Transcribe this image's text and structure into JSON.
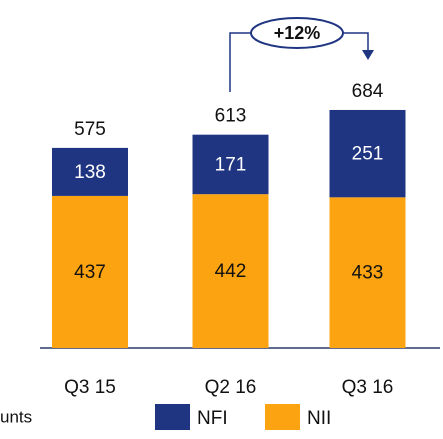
{
  "chart_data": {
    "type": "stacked-bar",
    "categories": [
      "Q3 15",
      "Q2 16",
      "Q3 16"
    ],
    "series": [
      {
        "name": "NII",
        "color": "#fca311",
        "values": [
          437,
          442,
          433
        ]
      },
      {
        "name": "NFI",
        "color": "#1f3582",
        "values": [
          138,
          171,
          251
        ]
      }
    ],
    "totals": [
      575,
      613,
      684
    ],
    "ylim": [
      0,
      1000
    ],
    "annotation": "+12%",
    "note": "unts"
  }
}
